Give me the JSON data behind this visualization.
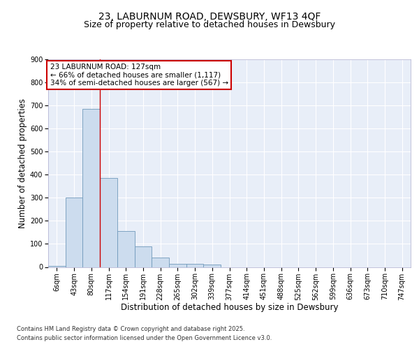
{
  "title_line1": "23, LABURNUM ROAD, DEWSBURY, WF13 4QF",
  "title_line2": "Size of property relative to detached houses in Dewsbury",
  "xlabel": "Distribution of detached houses by size in Dewsbury",
  "ylabel": "Number of detached properties",
  "footnote1": "Contains HM Land Registry data © Crown copyright and database right 2025.",
  "footnote2": "Contains public sector information licensed under the Open Government Licence v3.0.",
  "categories": [
    "6sqm",
    "43sqm",
    "80sqm",
    "117sqm",
    "154sqm",
    "191sqm",
    "228sqm",
    "265sqm",
    "302sqm",
    "339sqm",
    "377sqm",
    "414sqm",
    "451sqm",
    "488sqm",
    "525sqm",
    "562sqm",
    "599sqm",
    "636sqm",
    "673sqm",
    "710sqm",
    "747sqm"
  ],
  "values": [
    6,
    300,
    685,
    385,
    155,
    90,
    40,
    15,
    15,
    10,
    0,
    0,
    0,
    0,
    0,
    0,
    0,
    0,
    0,
    0,
    0
  ],
  "bar_color": "#ccdcee",
  "bar_edge_color": "#7099bb",
  "red_line_x": 2.5,
  "annotation_text": "23 LABURNUM ROAD: 127sqm\n← 66% of detached houses are smaller (1,117)\n34% of semi-detached houses are larger (567) →",
  "annotation_box_color": "#ffffff",
  "annotation_box_edge": "#cc0000",
  "red_line_color": "#cc0000",
  "background_color": "#e8eef8",
  "ylim": [
    0,
    900
  ],
  "yticks": [
    0,
    100,
    200,
    300,
    400,
    500,
    600,
    700,
    800,
    900
  ],
  "grid_color": "#ffffff",
  "title_fontsize": 10,
  "subtitle_fontsize": 9,
  "axis_label_fontsize": 8.5,
  "tick_fontsize": 7,
  "footnote_fontsize": 6,
  "annotation_fontsize": 7.5
}
